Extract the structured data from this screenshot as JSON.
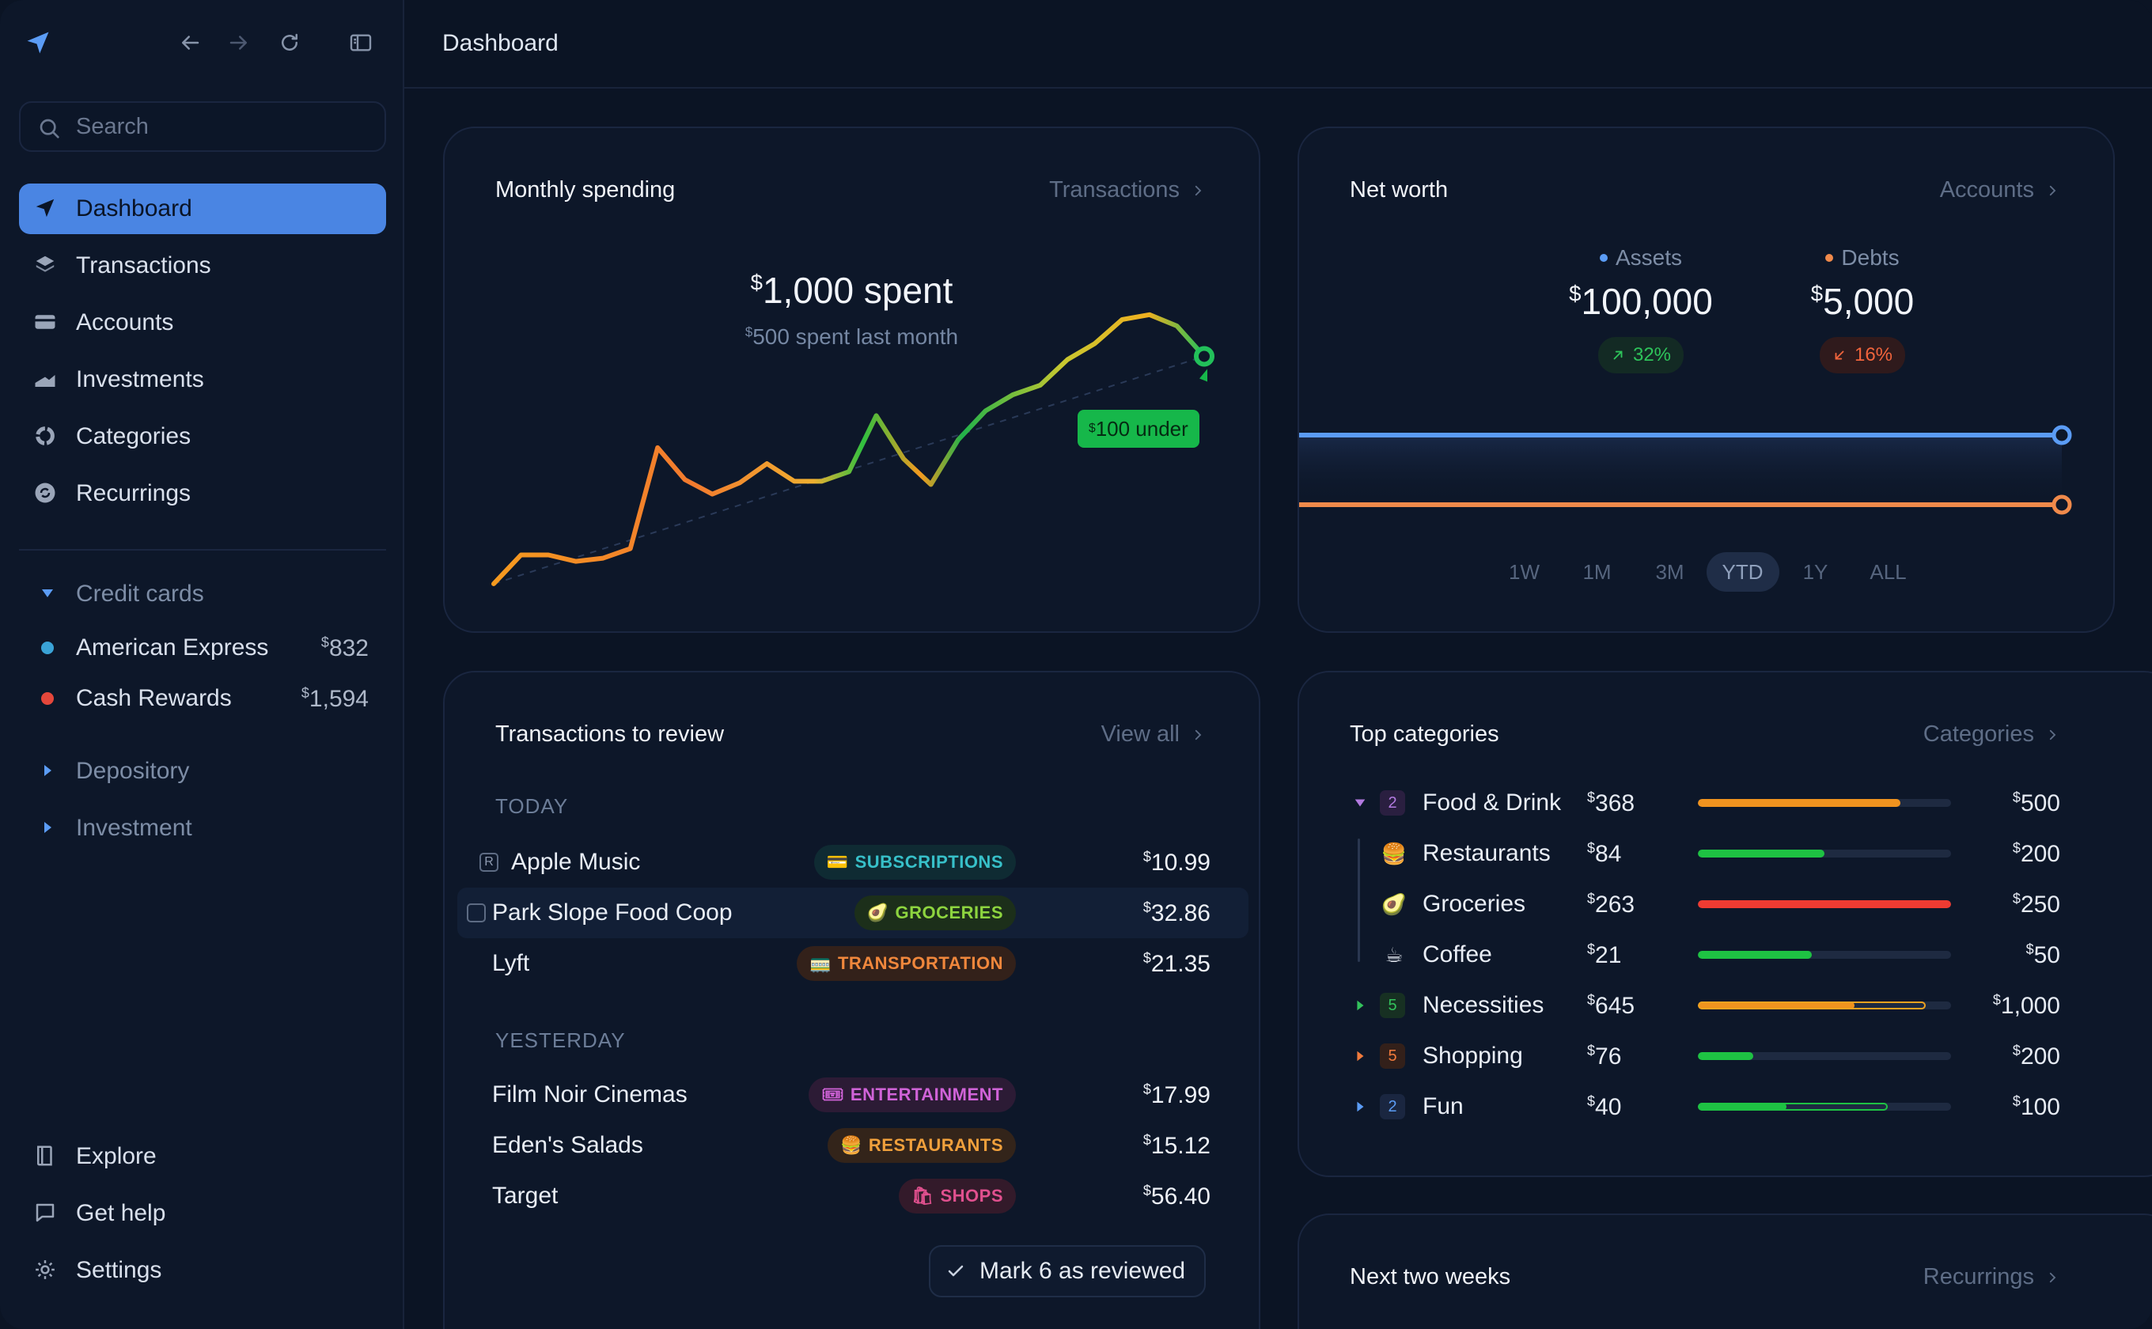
{
  "sidebar": {
    "search_placeholder": "Search",
    "nav": [
      {
        "label": "Dashboard",
        "icon": "send-icon"
      },
      {
        "label": "Transactions",
        "icon": "layers-icon"
      },
      {
        "label": "Accounts",
        "icon": "card-icon"
      },
      {
        "label": "Investments",
        "icon": "chart-icon"
      },
      {
        "label": "Categories",
        "icon": "pie-icon"
      },
      {
        "label": "Recurrings",
        "icon": "repeat-icon"
      }
    ],
    "groups": {
      "credit": {
        "label": "Credit cards"
      },
      "depository": {
        "label": "Depository"
      },
      "investment": {
        "label": "Investment"
      }
    },
    "accounts": [
      {
        "label": "American Express",
        "amount": "832",
        "color": "#3aa3d6"
      },
      {
        "label": "Cash Rewards",
        "amount": "1,594",
        "color": "#e5473b"
      }
    ],
    "bottom": [
      {
        "label": "Explore"
      },
      {
        "label": "Get help"
      },
      {
        "label": "Settings"
      }
    ]
  },
  "header": {
    "title": "Dashboard"
  },
  "monthly": {
    "title": "Monthly spending",
    "link": "Transactions",
    "spent": "1,000 spent",
    "last_month": "500 spent last month",
    "pill": "100 under",
    "chart_data": {
      "type": "line",
      "series": [
        {
          "values": [
            0,
            18,
            18,
            14,
            16,
            22,
            85,
            65,
            56,
            63,
            75,
            64,
            64,
            70,
            105,
            78,
            62,
            90,
            108,
            118,
            124,
            140,
            150,
            165,
            168,
            161,
            142
          ]
        }
      ],
      "ylim": [
        0,
        200
      ]
    }
  },
  "networth": {
    "title": "Net worth",
    "link": "Accounts",
    "assets": {
      "label": "Assets",
      "value": "100,000",
      "change": "32%",
      "color": "#5b9cf5"
    },
    "debts": {
      "label": "Debts",
      "value": "5,000",
      "change": "16%",
      "color": "#f08a4b"
    },
    "ranges": [
      "1W",
      "1M",
      "3M",
      "YTD",
      "1Y",
      "ALL"
    ],
    "selected_range": "YTD"
  },
  "review": {
    "title": "Transactions to review",
    "link": "View all",
    "today_label": "TODAY",
    "yesterday_label": "YESTERDAY",
    "today": [
      {
        "name": "Apple Music",
        "tag": "SUBSCRIPTIONS",
        "emoji": "💳",
        "amount": "10.99",
        "tag_color": "#37c0c9",
        "tag_bg": "#0f2b33"
      },
      {
        "name": "Park Slope Food Coop",
        "tag": "GROCERIES",
        "emoji": "🥑",
        "amount": "32.86",
        "tag_color": "#8dd43f",
        "tag_bg": "#1c2f1a"
      },
      {
        "name": "Lyft",
        "tag": "TRANSPORTATION",
        "emoji": "🚃",
        "amount": "21.35",
        "tag_color": "#f0873c",
        "tag_bg": "#33211a"
      }
    ],
    "yesterday": [
      {
        "name": "Film Noir Cinemas",
        "tag": "ENTERTAINMENT",
        "emoji": "🎟",
        "amount": "17.99",
        "tag_color": "#d063d8",
        "tag_bg": "#2c1b35"
      },
      {
        "name": "Eden's Salads",
        "tag": "RESTAURANTS",
        "emoji": "🍔",
        "amount": "15.12",
        "tag_color": "#f0a03c",
        "tag_bg": "#33241a"
      },
      {
        "name": "Target",
        "tag": "SHOPS",
        "emoji": "🛍",
        "amount": "56.40",
        "tag_color": "#e0508e",
        "tag_bg": "#331a2a"
      }
    ],
    "button": "Mark 6 as reviewed"
  },
  "categories": {
    "title": "Top categories",
    "link": "Categories",
    "rows": [
      {
        "name": "Food & Drink",
        "badge": "2",
        "spent": "368",
        "budget": "500",
        "fraction": 0.8,
        "color": "#f0931f",
        "badge_color": "#b27ae0",
        "badge_bg": "#2a1f40",
        "tri_color": "#b27ae0",
        "expanded": true
      },
      {
        "name": "Restaurants",
        "emoji": "🍔",
        "spent": "84",
        "budget": "200",
        "fraction": 0.5,
        "color": "#1ec243"
      },
      {
        "name": "Groceries",
        "emoji": "🥑",
        "spent": "263",
        "budget": "250",
        "fraction": 1.0,
        "color": "#ee3b32"
      },
      {
        "name": "Coffee",
        "emoji": "☕",
        "spent": "21",
        "budget": "50",
        "fraction": 0.45,
        "color": "#1ec243"
      },
      {
        "name": "Necessities",
        "badge": "5",
        "spent": "645",
        "budget": "1,000",
        "fraction": 0.62,
        "outline": 0.9,
        "color": "#f0931f",
        "outline_color": "#f0a21f",
        "badge_color": "#33c25c",
        "badge_bg": "#173022",
        "tri_color": "#33c25c"
      },
      {
        "name": "Shopping",
        "badge": "5",
        "spent": "76",
        "budget": "200",
        "fraction": 0.22,
        "color": "#1ec243",
        "badge_color": "#f07a3c",
        "badge_bg": "#33201a",
        "tri_color": "#f07a3c"
      },
      {
        "name": "Fun",
        "badge": "2",
        "spent": "40",
        "budget": "100",
        "fraction": 0.35,
        "outline": 0.75,
        "color": "#1ec243",
        "outline_color": "#1ec243",
        "badge_color": "#5b9cf5",
        "badge_bg": "#1a2640",
        "tri_color": "#5b9cf5"
      }
    ]
  },
  "next": {
    "title": "Next two weeks",
    "link": "Recurrings"
  }
}
